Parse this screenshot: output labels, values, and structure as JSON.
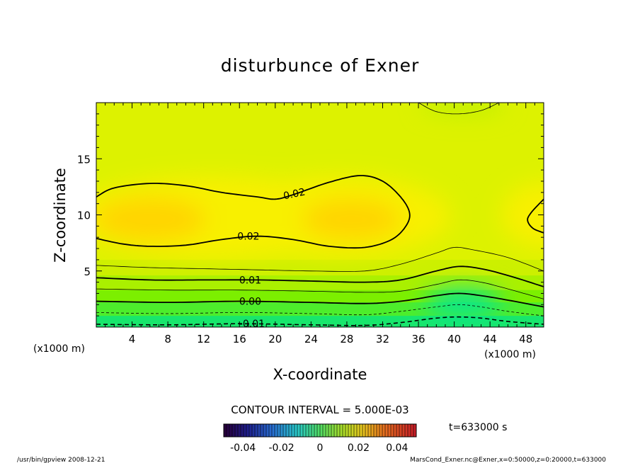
{
  "chart_data": {
    "type": "heatmap",
    "title": "disturbunce of Exner",
    "xlabel": "X-coordinate",
    "ylabel": "Z-coordinate",
    "x_units": "(x1000 m)",
    "y_units": "(x1000 m)",
    "xlim": [
      0,
      50
    ],
    "ylim": [
      0,
      20
    ],
    "x_ticks": [
      4,
      8,
      12,
      16,
      20,
      24,
      28,
      32,
      36,
      40,
      44,
      48
    ],
    "y_ticks": [
      5,
      10,
      15
    ],
    "contour_interval_label": "CONTOUR INTERVAL = 5.000E-03",
    "contour_labels": [
      {
        "text": "0.02",
        "x": 22.2,
        "z": 11.9
      },
      {
        "text": "0.02",
        "x": 17.0,
        "z": 8.1
      },
      {
        "text": "0.01",
        "x": 17.2,
        "z": 4.2
      },
      {
        "text": "0.00",
        "x": 17.2,
        "z": 2.3
      },
      {
        "text": "-0.01",
        "x": 17.4,
        "z": 0.3
      }
    ],
    "colorbar": {
      "range": [
        -0.05,
        0.05
      ],
      "tick_labels": [
        "-0.04",
        "-0.02",
        "0",
        "0.02",
        "0.04"
      ]
    },
    "time_label": "t=633000 s"
  },
  "footer": {
    "left": "/usr/bin/gpview   2008-12-21",
    "right": "MarsCond_Exner.nc@Exner,x=0:50000,z=0:20000,t=633000"
  },
  "colors": {
    "high": "#ffd700",
    "mid": "#ccff00",
    "low": "#00e87a",
    "contour": "#000000"
  }
}
